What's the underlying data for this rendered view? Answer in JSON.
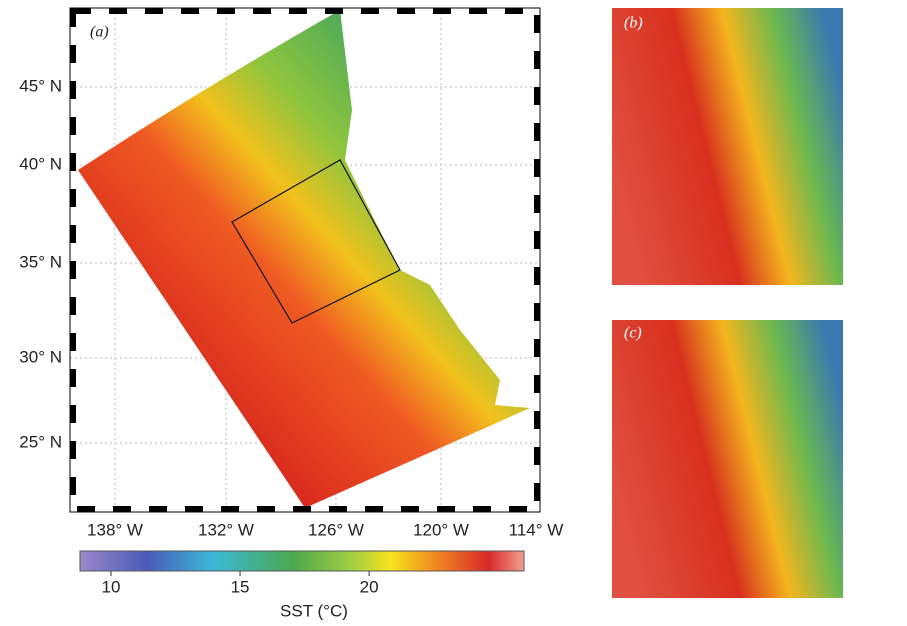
{
  "panels": {
    "a": "(a)",
    "b": "(b)",
    "c": "(c)"
  },
  "lat_labels": [
    "45° N",
    "40° N",
    "35° N",
    "30° N",
    "25° N"
  ],
  "lon_labels": [
    "138° W",
    "132° W",
    "126° W",
    "120° W",
    "114° W"
  ],
  "colorbar": {
    "label": "SST (°C)",
    "lim": [
      8.8,
      26
    ],
    "ticks": [
      10,
      15,
      20
    ]
  }
}
